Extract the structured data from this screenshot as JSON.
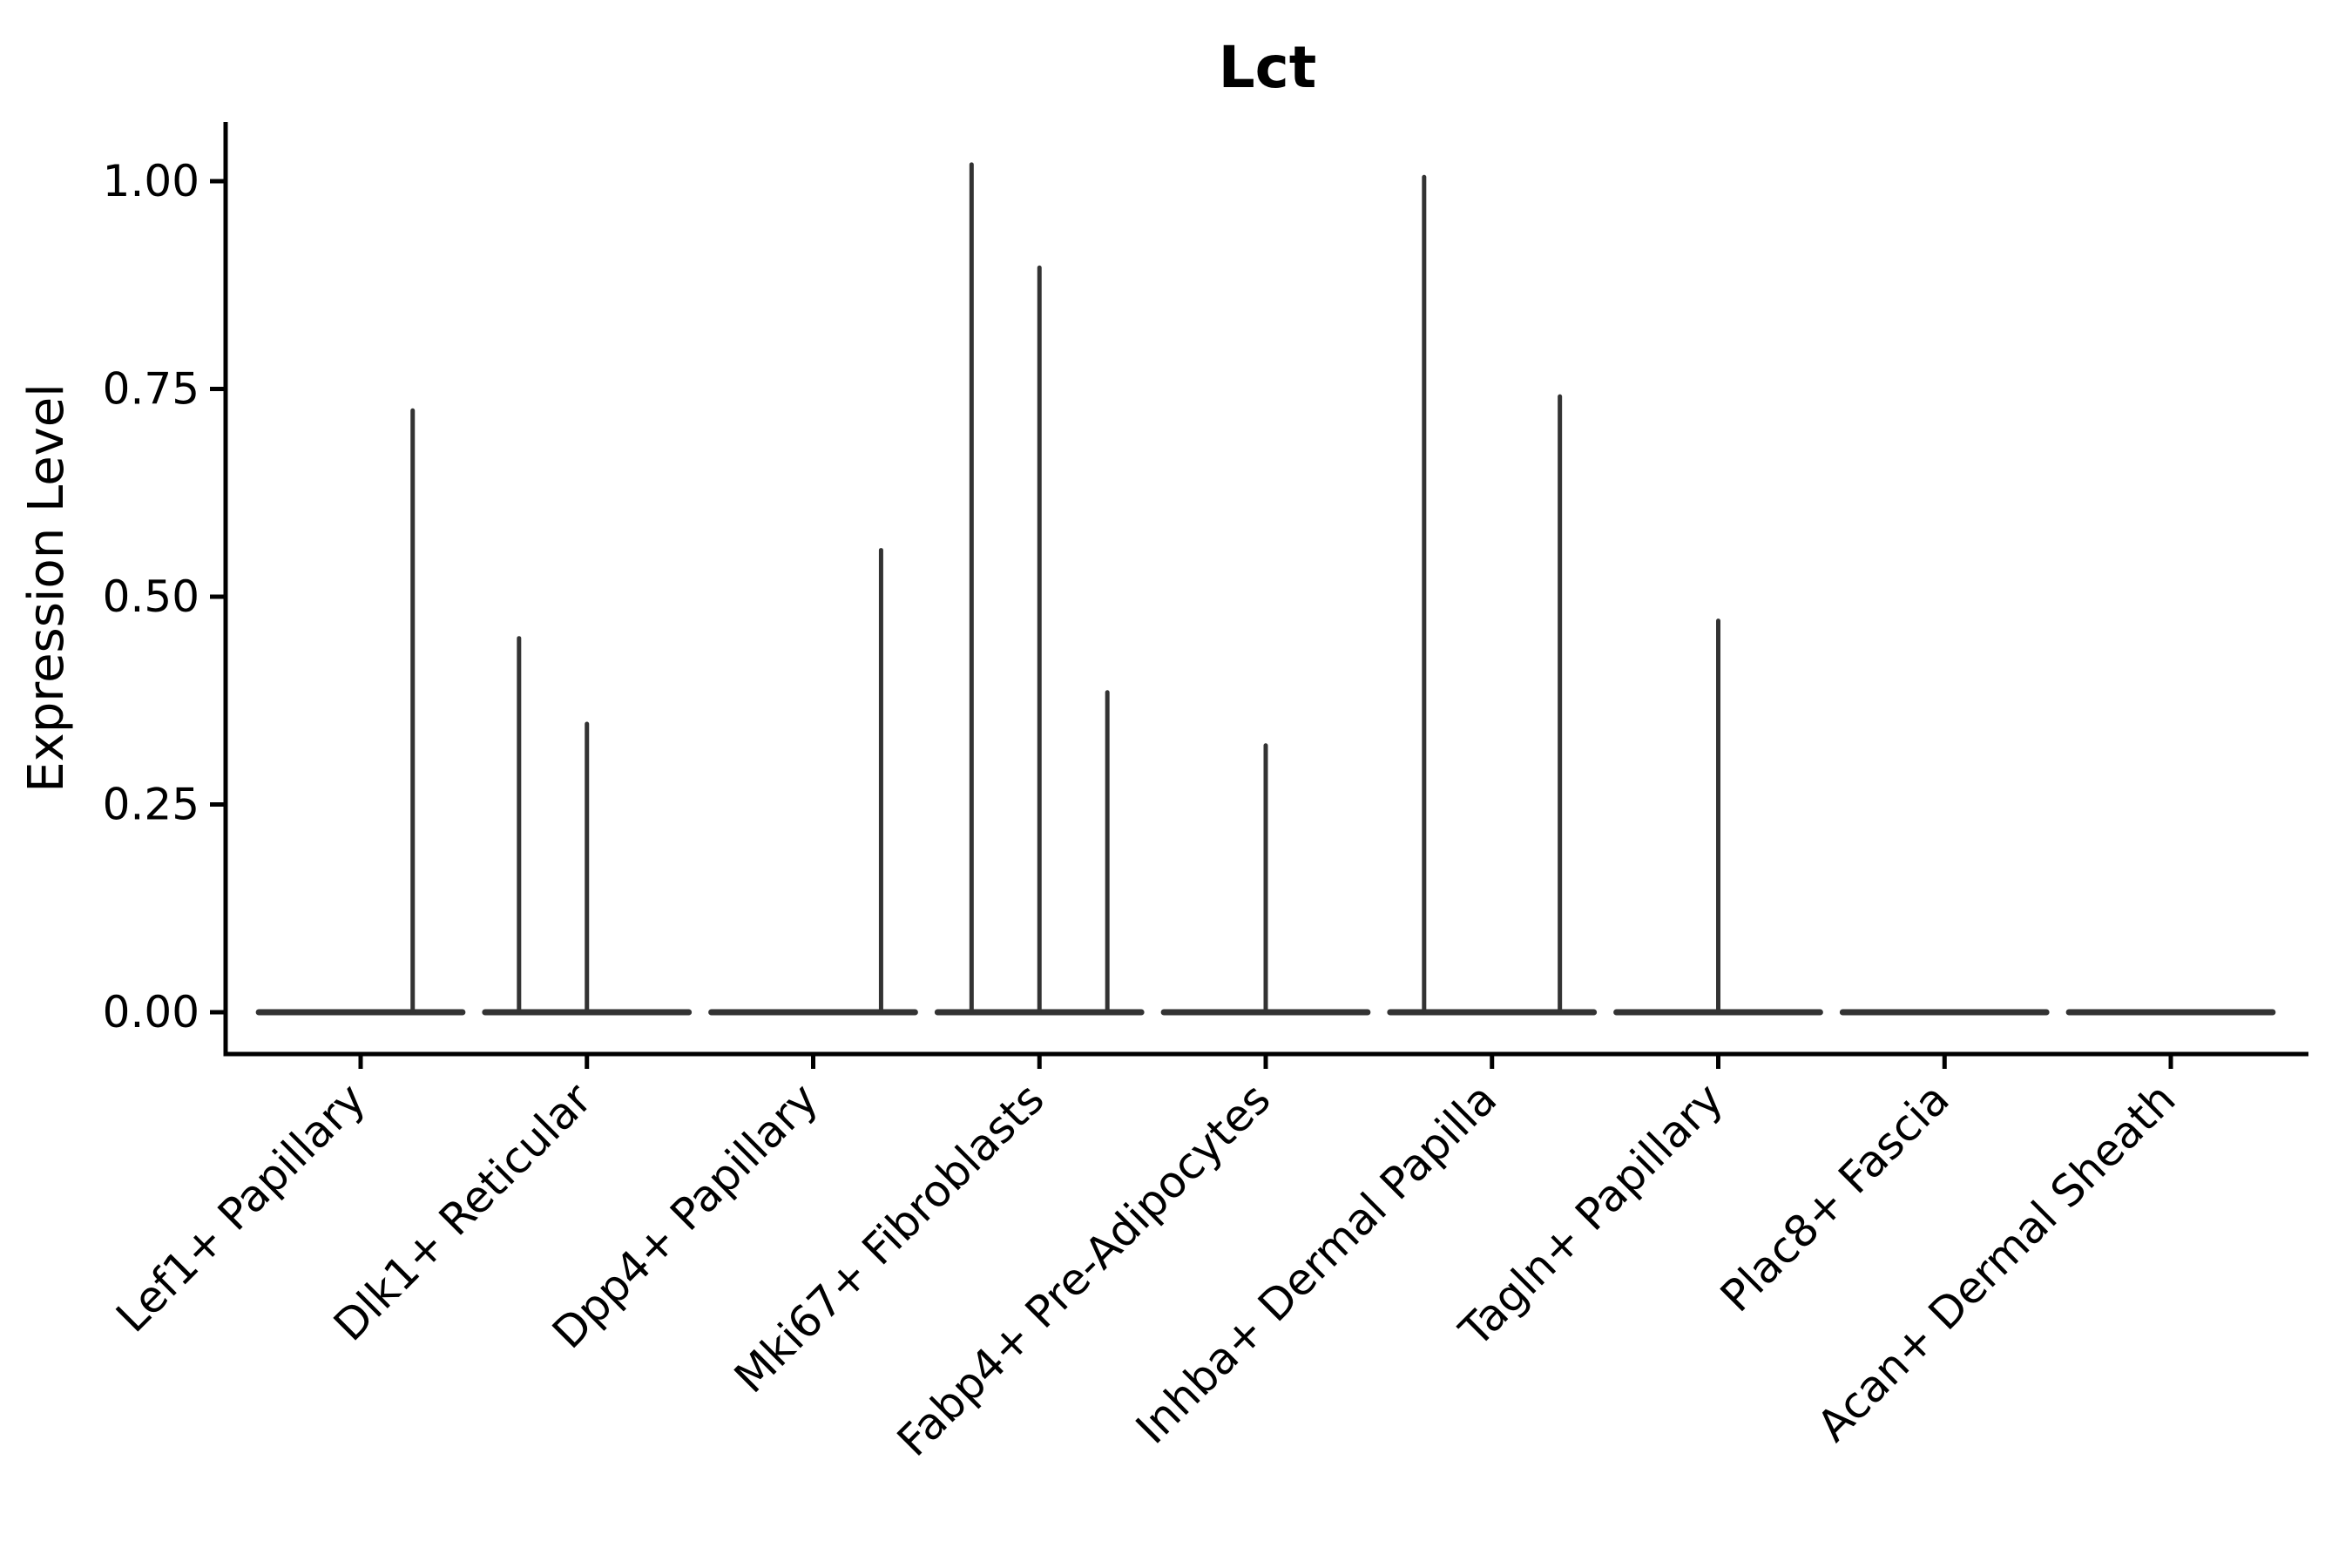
{
  "chart_data": {
    "type": "violin",
    "title": "Lct",
    "ylabel": "Expression Level",
    "xlabel": "",
    "legend": null,
    "grid": false,
    "ylim": [
      -0.05,
      1.07
    ],
    "yticks": [
      {
        "value": 0.0,
        "label": "0.00"
      },
      {
        "value": 0.25,
        "label": "0.25"
      },
      {
        "value": 0.5,
        "label": "0.50"
      },
      {
        "value": 0.75,
        "label": "0.75"
      },
      {
        "value": 1.0,
        "label": "1.00"
      }
    ],
    "categories": [
      "Lef1+ Papillary",
      "Dlk1+ Reticular",
      "Dpp4+ Papillary",
      "Mki67+ Fibroblasts",
      "Fabp4+ Pre-Adipocytes",
      "Inhba+ Dermal Papilla",
      "Tagln+ Papillary",
      "Plac8+ Fascia",
      "Acan+ Dermal Sheath"
    ],
    "violin_width": 0.9,
    "violins": [
      {
        "category": "Lef1+ Papillary",
        "baseline_value": 0.0,
        "spikes": [
          {
            "offset": 0.23,
            "value": 0.724
          }
        ]
      },
      {
        "category": "Dlk1+ Reticular",
        "baseline_value": 0.0,
        "spikes": [
          {
            "offset": -0.3,
            "value": 0.45
          },
          {
            "offset": 0.0,
            "value": 0.347
          }
        ]
      },
      {
        "category": "Dpp4+ Papillary",
        "baseline_value": 0.0,
        "spikes": [
          {
            "offset": 0.3,
            "value": 0.556
          }
        ]
      },
      {
        "category": "Mki67+ Fibroblasts",
        "baseline_value": 0.0,
        "spikes": [
          {
            "offset": -0.3,
            "value": 1.02
          },
          {
            "offset": 0.0,
            "value": 0.896
          },
          {
            "offset": 0.3,
            "value": 0.385
          }
        ]
      },
      {
        "category": "Fabp4+ Pre-Adipocytes",
        "baseline_value": 0.0,
        "spikes": [
          {
            "offset": 0.0,
            "value": 0.321
          }
        ]
      },
      {
        "category": "Inhba+ Dermal Papilla",
        "baseline_value": 0.0,
        "spikes": [
          {
            "offset": -0.3,
            "value": 1.005
          },
          {
            "offset": 0.3,
            "value": 0.741
          }
        ]
      },
      {
        "category": "Tagln+ Papillary",
        "baseline_value": 0.0,
        "spikes": [
          {
            "offset": 0.0,
            "value": 0.471
          }
        ]
      },
      {
        "category": "Plac8+ Fascia",
        "baseline_value": 0.0,
        "spikes": []
      },
      {
        "category": "Acan+ Dermal Sheath",
        "baseline_value": 0.0,
        "spikes": []
      }
    ],
    "colors": {
      "violin_stroke": "#333333",
      "axis_stroke": "#000000",
      "text": "#000000",
      "background": "#ffffff"
    }
  }
}
